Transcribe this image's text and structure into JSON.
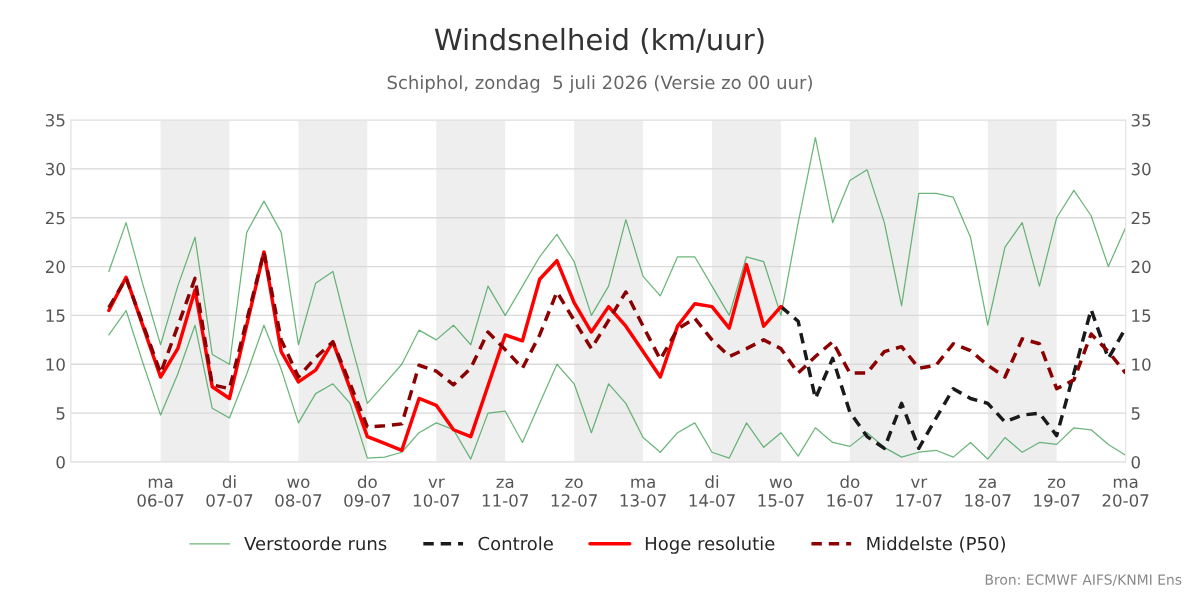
{
  "chart_data": {
    "type": "line",
    "title": "Windsnelheid (km/uur)",
    "subtitle": "Schiphol, zondag  5 juli 2026 (Versie zo 00 uur)",
    "x": [
      "2026-07-05T06:00",
      "2026-07-05T12:00",
      "2026-07-05T18:00",
      "2026-07-06T00:00",
      "2026-07-06T06:00",
      "2026-07-06T12:00",
      "2026-07-06T18:00",
      "2026-07-07T00:00",
      "2026-07-07T06:00",
      "2026-07-07T12:00",
      "2026-07-07T18:00",
      "2026-07-08T00:00",
      "2026-07-08T06:00",
      "2026-07-08T12:00",
      "2026-07-08T18:00",
      "2026-07-09T00:00",
      "2026-07-09T06:00",
      "2026-07-09T12:00",
      "2026-07-09T18:00",
      "2026-07-10T00:00",
      "2026-07-10T06:00",
      "2026-07-10T12:00",
      "2026-07-10T18:00",
      "2026-07-11T00:00",
      "2026-07-11T06:00",
      "2026-07-11T12:00",
      "2026-07-11T18:00",
      "2026-07-12T00:00",
      "2026-07-12T06:00",
      "2026-07-12T12:00",
      "2026-07-12T18:00",
      "2026-07-13T00:00",
      "2026-07-13T06:00",
      "2026-07-13T12:00",
      "2026-07-13T18:00",
      "2026-07-14T00:00",
      "2026-07-14T06:00",
      "2026-07-14T12:00",
      "2026-07-14T18:00",
      "2026-07-15T00:00",
      "2026-07-15T06:00",
      "2026-07-15T12:00",
      "2026-07-15T18:00",
      "2026-07-16T00:00",
      "2026-07-16T06:00",
      "2026-07-16T12:00",
      "2026-07-16T18:00",
      "2026-07-17T00:00",
      "2026-07-17T06:00",
      "2026-07-17T12:00",
      "2026-07-17T18:00",
      "2026-07-18T00:00",
      "2026-07-18T06:00",
      "2026-07-18T12:00",
      "2026-07-18T18:00",
      "2026-07-19T00:00",
      "2026-07-19T06:00",
      "2026-07-19T12:00",
      "2026-07-19T18:00",
      "2026-07-20T00:00"
    ],
    "series": [
      {
        "name": "Verstoorde runs",
        "color": "#3a9d4f",
        "line_style": "solid",
        "values": [
          19.5,
          24.5,
          18,
          12,
          18,
          23,
          11,
          10,
          23.5,
          26.7,
          23.5,
          12,
          18.3,
          19.5,
          12.5,
          6,
          8,
          10,
          13.5,
          12.5,
          14,
          12,
          18,
          15,
          18,
          21,
          23.3,
          20.5,
          15,
          18,
          24.8,
          19,
          17,
          21,
          21,
          18,
          15,
          21,
          20.5,
          15,
          24.5,
          33.2,
          24.5,
          28.8,
          29.9,
          24.5,
          16,
          27.5,
          27.5,
          27.1,
          23,
          14,
          22,
          24.5,
          18,
          25,
          27.8,
          25.2,
          20,
          24
        ]
      },
      {
        "color": "#3a9d4f",
        "line_style": "solid",
        "values": [
          13,
          15.5,
          10,
          4.8,
          9,
          14,
          5.5,
          4.5,
          9,
          14,
          9.5,
          4,
          7,
          8,
          6,
          0.4,
          0.5,
          1,
          3,
          4,
          3.3,
          0.3,
          5,
          5.2,
          2,
          6,
          10,
          8,
          3,
          8,
          6,
          2.5,
          1,
          3,
          4,
          1,
          0.4,
          4,
          1.5,
          3,
          0.6,
          3.5,
          2,
          1.6,
          3,
          1.5,
          0.5,
          1,
          1.2,
          0.5,
          2,
          0.3,
          2.5,
          1,
          2,
          1.8,
          3.5,
          3.3,
          1.8,
          0.7
        ]
      },
      {
        "name": "Controle",
        "color": "#1a1a1a",
        "line_style": "dashed",
        "values": [
          null,
          null,
          null,
          null,
          null,
          null,
          null,
          null,
          null,
          null,
          null,
          null,
          null,
          null,
          null,
          null,
          null,
          null,
          null,
          null,
          null,
          null,
          null,
          null,
          null,
          null,
          null,
          null,
          null,
          null,
          null,
          null,
          null,
          null,
          null,
          null,
          null,
          null,
          null,
          15.9,
          14.4,
          6.5,
          10.6,
          5.1,
          2.6,
          1.4,
          6.0,
          1.4,
          4.5,
          7.5,
          6.5,
          6.0,
          4.1,
          4.8,
          5.0,
          2.7,
          9.1,
          15.6,
          10.6,
          13.7
        ]
      },
      {
        "name": "Hoge resolutie",
        "color": "#ff0000",
        "line_style": "solid",
        "values": [
          15.5,
          18.9,
          13.8,
          8.7,
          11.6,
          17.6,
          7.7,
          6.5,
          14.0,
          21.5,
          11.3,
          8.2,
          9.4,
          12.3,
          7.5,
          2.6,
          1.9,
          1.2,
          6.5,
          5.8,
          3.3,
          2.6,
          7.8,
          13.0,
          12.4,
          18.7,
          20.6,
          16.3,
          13.3,
          15.9,
          13.9,
          11.3,
          8.7,
          13.9,
          16.2,
          15.9,
          13.7,
          20.2,
          13.9,
          15.9,
          null,
          null,
          null,
          null,
          null,
          null,
          null,
          null,
          null,
          null,
          null,
          null,
          null,
          null,
          null,
          null,
          null,
          null,
          null,
          null
        ]
      },
      {
        "name": "Middelste (P50)",
        "color": "#8b0000",
        "line_style": "dashed",
        "values": [
          15.8,
          18.8,
          14.0,
          9.1,
          13.9,
          18.8,
          7.9,
          7.5,
          14.5,
          21.5,
          12.5,
          8.7,
          10.7,
          12.3,
          8.0,
          3.6,
          3.7,
          3.9,
          9.9,
          9.3,
          7.9,
          9.6,
          13.3,
          11.5,
          9.6,
          13.0,
          17.4,
          14.5,
          11.6,
          14.5,
          17.4,
          13.9,
          10.5,
          13.6,
          14.7,
          12.5,
          10.8,
          11.6,
          12.5,
          11.6,
          9.1,
          10.8,
          12.3,
          9.1,
          9.1,
          11.3,
          11.8,
          9.6,
          9.9,
          12.1,
          11.4,
          9.9,
          8.7,
          12.6,
          12.1,
          7.5,
          8.4,
          13.1,
          11.3,
          9.1
        ]
      }
    ],
    "xlim": [
      "2026-07-04T16:45",
      "2026-07-20T00:00"
    ],
    "xticks": [
      {
        "value": "2026-07-06",
        "label": "ma\n06-07"
      },
      {
        "value": "2026-07-07",
        "label": "di\n07-07"
      },
      {
        "value": "2026-07-08",
        "label": "wo\n08-07"
      },
      {
        "value": "2026-07-09",
        "label": "do\n09-07"
      },
      {
        "value": "2026-07-10",
        "label": "vr\n10-07"
      },
      {
        "value": "2026-07-11",
        "label": "za\n11-07"
      },
      {
        "value": "2026-07-12",
        "label": "zo\n12-07"
      },
      {
        "value": "2026-07-13",
        "label": "ma\n13-07"
      },
      {
        "value": "2026-07-14",
        "label": "di\n14-07"
      },
      {
        "value": "2026-07-15",
        "label": "wo\n15-07"
      },
      {
        "value": "2026-07-16",
        "label": "do\n16-07"
      },
      {
        "value": "2026-07-17",
        "label": "vr\n17-07"
      },
      {
        "value": "2026-07-18",
        "label": "za\n18-07"
      },
      {
        "value": "2026-07-19",
        "label": "zo\n19-07"
      },
      {
        "value": "2026-07-20",
        "label": "ma\n20-07"
      }
    ],
    "ylim": [
      0,
      35
    ],
    "yticks": [
      0,
      5,
      10,
      15,
      20,
      25,
      30,
      35
    ],
    "y2lim": [
      0,
      35
    ],
    "y2ticks": [
      0,
      5,
      10,
      15,
      20,
      25,
      30,
      35
    ],
    "bands": [
      {
        "axis": "x",
        "from": "2026-07-06",
        "to": "2026-07-07",
        "color": "#eeeeee"
      },
      {
        "axis": "x",
        "from": "2026-07-08",
        "to": "2026-07-09",
        "color": "#eeeeee"
      },
      {
        "axis": "x",
        "from": "2026-07-10",
        "to": "2026-07-11",
        "color": "#eeeeee"
      },
      {
        "axis": "x",
        "from": "2026-07-12",
        "to": "2026-07-13",
        "color": "#eeeeee"
      },
      {
        "axis": "x",
        "from": "2026-07-14",
        "to": "2026-07-15",
        "color": "#eeeeee"
      },
      {
        "axis": "x",
        "from": "2026-07-16",
        "to": "2026-07-17",
        "color": "#eeeeee"
      },
      {
        "axis": "x",
        "from": "2026-07-18",
        "to": "2026-07-19",
        "color": "#eeeeee"
      }
    ],
    "grid": "y",
    "legend": "bottom",
    "marker": "none",
    "annotations": [
      "Bron: ECMWF AIFS/KNMI Ens"
    ]
  }
}
